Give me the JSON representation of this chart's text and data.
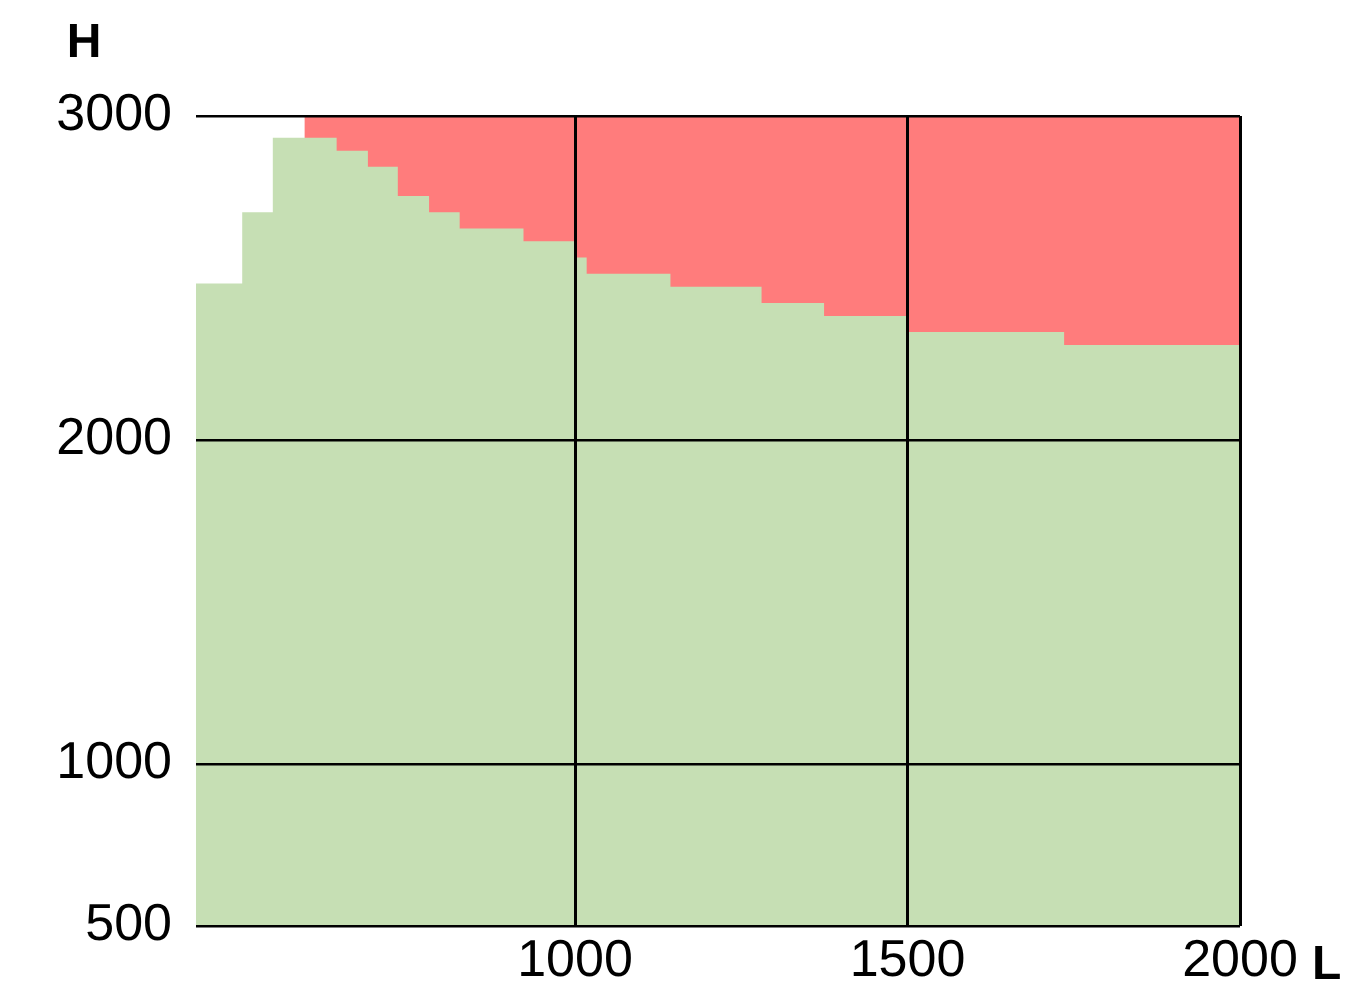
{
  "chart_data": {
    "type": "area",
    "xlabel": "L",
    "ylabel": "H",
    "xlim": [
      430,
      2000
    ],
    "ylim": [
      500,
      3000
    ],
    "xticks": [
      1000,
      1500,
      2000
    ],
    "yticks": [
      500,
      1000,
      2000,
      3000
    ],
    "grid": true,
    "legend": false,
    "series": [
      {
        "color": "#ff7c7c",
        "x": [
          593,
          2000
        ],
        "values": [
          3000,
          3000
        ]
      },
      {
        "color": "#c6dfb4",
        "x": [
          430,
          501,
          501,
          547,
          547,
          640,
          640,
          687,
          687,
          732,
          732,
          779,
          779,
          825,
          825,
          921,
          921,
          998,
          998,
          1016,
          1016,
          1142,
          1142,
          1279,
          1279,
          1373,
          1373,
          1500,
          1500,
          1734,
          1734,
          2000
        ],
        "values": [
          2480,
          2480,
          2700,
          2700,
          2930,
          2930,
          2890,
          2890,
          2840,
          2840,
          2750,
          2750,
          2700,
          2700,
          2650,
          2650,
          2610,
          2610,
          2560,
          2560,
          2510,
          2510,
          2470,
          2470,
          2420,
          2420,
          2380,
          2380,
          2330,
          2330,
          2290,
          2290
        ]
      }
    ]
  }
}
